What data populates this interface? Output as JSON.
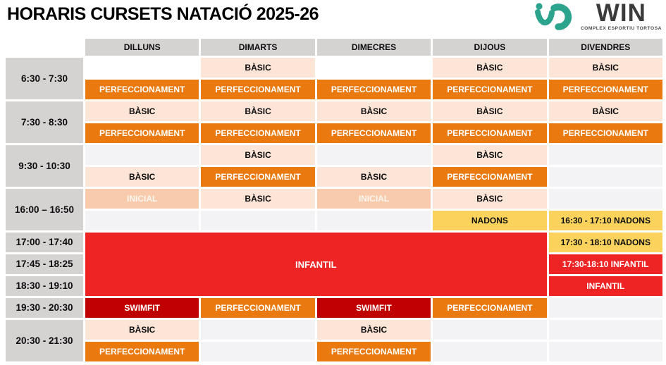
{
  "title": "HORARIS CURSETS NATACIÓ 2025-26",
  "logo": {
    "name": "WIN",
    "subtitle": "COMPLEX ESPORTIU TORTOSA",
    "brand_color": "#2BA38D",
    "text_color": "#3B3B3B"
  },
  "days": [
    {
      "id": "dilluns",
      "label": "DILLUNS"
    },
    {
      "id": "dimarts",
      "label": "DIMARTS"
    },
    {
      "id": "dimecres",
      "label": "DIMECRES"
    },
    {
      "id": "dijous",
      "label": "DIJOUS"
    },
    {
      "id": "divendres",
      "label": "DIVENDRES"
    }
  ],
  "course_types": {
    "basic": {
      "label": "BÀSIC",
      "color": "#FCE4D6",
      "text_color": "#000000"
    },
    "perfeccionament": {
      "label": "PERFECCIONAMENT",
      "color": "#EA7A0F",
      "text_color": "#FFFFFF"
    },
    "inicial": {
      "label": "INICIAL",
      "color": "#F8CBAD",
      "text_color": "#FFFFFF"
    },
    "nadons": {
      "label": "NADONS",
      "color": "#FBD35C",
      "text_color": "#000000"
    },
    "infantil": {
      "label": "INFANTIL",
      "color": "#EE2424",
      "text_color": "#FFFFFF"
    },
    "swimfit": {
      "label": "SWIMFIT",
      "color": "#C00000",
      "text_color": "#FFFFFF"
    },
    "header_gray": {
      "label": "",
      "color": "#D5D2D2",
      "text_color": "#000000"
    },
    "empty": {
      "label": "",
      "color": "#F3F3F6",
      "text_color": "#000000"
    }
  },
  "schedule": {
    "blocks": [
      {
        "time": "6:30 - 7:30",
        "days": [
          [
            {
              "type": "blank",
              "label": ""
            },
            {
              "type": "perfeccionament",
              "label": "PERFECCIONAMENT"
            }
          ],
          [
            {
              "type": "basic",
              "label": "BÀSIC"
            },
            {
              "type": "perfeccionament",
              "label": "PERFECCIONAMENT"
            }
          ],
          [
            {
              "type": "blank",
              "label": ""
            },
            {
              "type": "perfeccionament",
              "label": "PERFECCIONAMENT"
            }
          ],
          [
            {
              "type": "basic",
              "label": "BÀSIC"
            },
            {
              "type": "perfeccionament",
              "label": "PERFECCIONAMENT"
            }
          ],
          [
            {
              "type": "basic",
              "label": "BÀSIC"
            },
            {
              "type": "perfeccionament",
              "label": "PERFECCIONAMENT"
            }
          ]
        ]
      },
      {
        "time": "7:30 - 8:30",
        "days": [
          [
            {
              "type": "basic",
              "label": "BÀSIC"
            },
            {
              "type": "perfeccionament",
              "label": "PERFECCIONAMENT"
            }
          ],
          [
            {
              "type": "basic",
              "label": "BÀSIC"
            },
            {
              "type": "perfeccionament",
              "label": "PERFECCIONAMENT"
            }
          ],
          [
            {
              "type": "basic",
              "label": "BÀSIC"
            },
            {
              "type": "perfeccionament",
              "label": "PERFECCIONAMENT"
            }
          ],
          [
            {
              "type": "basic",
              "label": "BÀSIC"
            },
            {
              "type": "perfeccionament",
              "label": "PERFECCIONAMENT"
            }
          ],
          [
            {
              "type": "basic",
              "label": "BÀSIC"
            },
            {
              "type": "perfeccionament",
              "label": "PERFECCIONAMENT"
            }
          ]
        ]
      },
      {
        "time": "9:30 - 10:30",
        "days": [
          [
            {
              "type": "empty",
              "label": ""
            },
            {
              "type": "basic",
              "label": "BÀSIC"
            }
          ],
          [
            {
              "type": "basic",
              "label": "BÀSIC"
            },
            {
              "type": "perfeccionament",
              "label": "PERFECCIONAMENT"
            }
          ],
          [
            {
              "type": "empty",
              "label": ""
            },
            {
              "type": "basic",
              "label": "BÀSIC"
            }
          ],
          [
            {
              "type": "basic",
              "label": "BÀSIC"
            },
            {
              "type": "perfeccionament",
              "label": "PERFECCIONAMENT"
            }
          ],
          [
            {
              "type": "empty",
              "label": ""
            },
            {
              "type": "empty",
              "label": ""
            }
          ]
        ]
      },
      {
        "time": "16:00 – 16:50",
        "days": [
          [
            {
              "type": "inicial",
              "label": "INICIAL"
            },
            {
              "type": "empty",
              "label": ""
            }
          ],
          [
            {
              "type": "basic",
              "label": "BÀSIC"
            },
            {
              "type": "empty",
              "label": ""
            }
          ],
          [
            {
              "type": "inicial",
              "label": "INICIAL"
            },
            {
              "type": "empty",
              "label": ""
            }
          ],
          [
            {
              "type": "basic",
              "label": "BÀSIC"
            },
            {
              "type": "nadons",
              "label": "NADONS"
            }
          ],
          [
            {
              "type": "empty",
              "label": ""
            },
            {
              "type": "nadons",
              "label": "16:30 - 17:10 NADONS"
            }
          ]
        ]
      },
      {
        "times": [
          "17:00 - 17:40",
          "17:45 - 18:25",
          "18:30 - 19:10"
        ],
        "merged": {
          "type": "infantil",
          "label": "INFANTIL",
          "col_span": 4,
          "row_span": 3
        },
        "divendres": [
          {
            "type": "nadons",
            "label": "17:30 - 18:10 NADONS"
          },
          {
            "type": "infantil",
            "label": "17:30-18:10 INFANTIL"
          },
          {
            "type": "infantil",
            "label": "INFANTIL"
          }
        ]
      },
      {
        "time": "19:30 - 20:30",
        "days": [
          [
            {
              "type": "swimfit",
              "label": "SWIMFIT"
            }
          ],
          [
            {
              "type": "perfeccionament",
              "label": "PERFECCIONAMENT"
            }
          ],
          [
            {
              "type": "swimfit",
              "label": "SWIMFIT"
            }
          ],
          [
            {
              "type": "perfeccionament",
              "label": "PERFECCIONAMENT"
            }
          ],
          [
            {
              "type": "empty",
              "label": ""
            }
          ]
        ]
      },
      {
        "time": "20:30 - 21:30",
        "days": [
          [
            {
              "type": "basic",
              "label": "BÀSIC"
            },
            {
              "type": "perfeccionament",
              "label": "PERFECCIONAMENT"
            }
          ],
          [
            {
              "type": "empty",
              "label": ""
            },
            {
              "type": "empty",
              "label": ""
            }
          ],
          [
            {
              "type": "basic",
              "label": "BÀSIC"
            },
            {
              "type": "perfeccionament",
              "label": "PERFECCIONAMENT"
            }
          ],
          [
            {
              "type": "empty",
              "label": ""
            },
            {
              "type": "empty",
              "label": ""
            }
          ],
          [
            {
              "type": "empty",
              "label": ""
            },
            {
              "type": "empty",
              "label": ""
            }
          ]
        ]
      }
    ]
  }
}
